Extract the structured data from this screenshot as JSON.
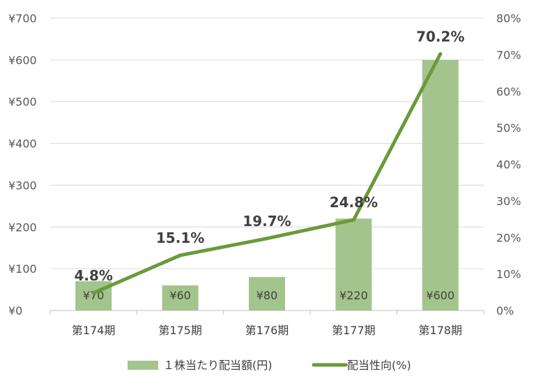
{
  "chart_data": {
    "type": "bar",
    "categories": [
      "第174期",
      "第175期",
      "第176期",
      "第177期",
      "第178期"
    ],
    "series": [
      {
        "name": "１株当たり配当額(円)",
        "type": "bar",
        "axis": "left",
        "values": [
          70,
          60,
          80,
          220,
          600
        ],
        "labels": [
          "¥70",
          "¥60",
          "¥80",
          "¥220",
          "¥600"
        ],
        "color": "#a3c48c"
      },
      {
        "name": "配当性向(%)",
        "type": "line",
        "axis": "right",
        "values": [
          4.8,
          15.1,
          19.7,
          24.8,
          70.2
        ],
        "labels": [
          "4.8%",
          "15.1%",
          "19.7%",
          "24.8%",
          "70.2%"
        ],
        "color": "#6a9a3a"
      }
    ],
    "y_left": {
      "range": [
        0,
        700
      ],
      "ticks": [
        "¥0",
        "¥100",
        "¥200",
        "¥300",
        "¥400",
        "¥500",
        "¥600",
        "¥700"
      ]
    },
    "y_right": {
      "range": [
        0,
        80
      ],
      "ticks": [
        "0%",
        "10%",
        "20%",
        "30%",
        "40%",
        "50%",
        "60%",
        "70%",
        "80%"
      ]
    },
    "grid": true,
    "legend_position": "bottom"
  }
}
